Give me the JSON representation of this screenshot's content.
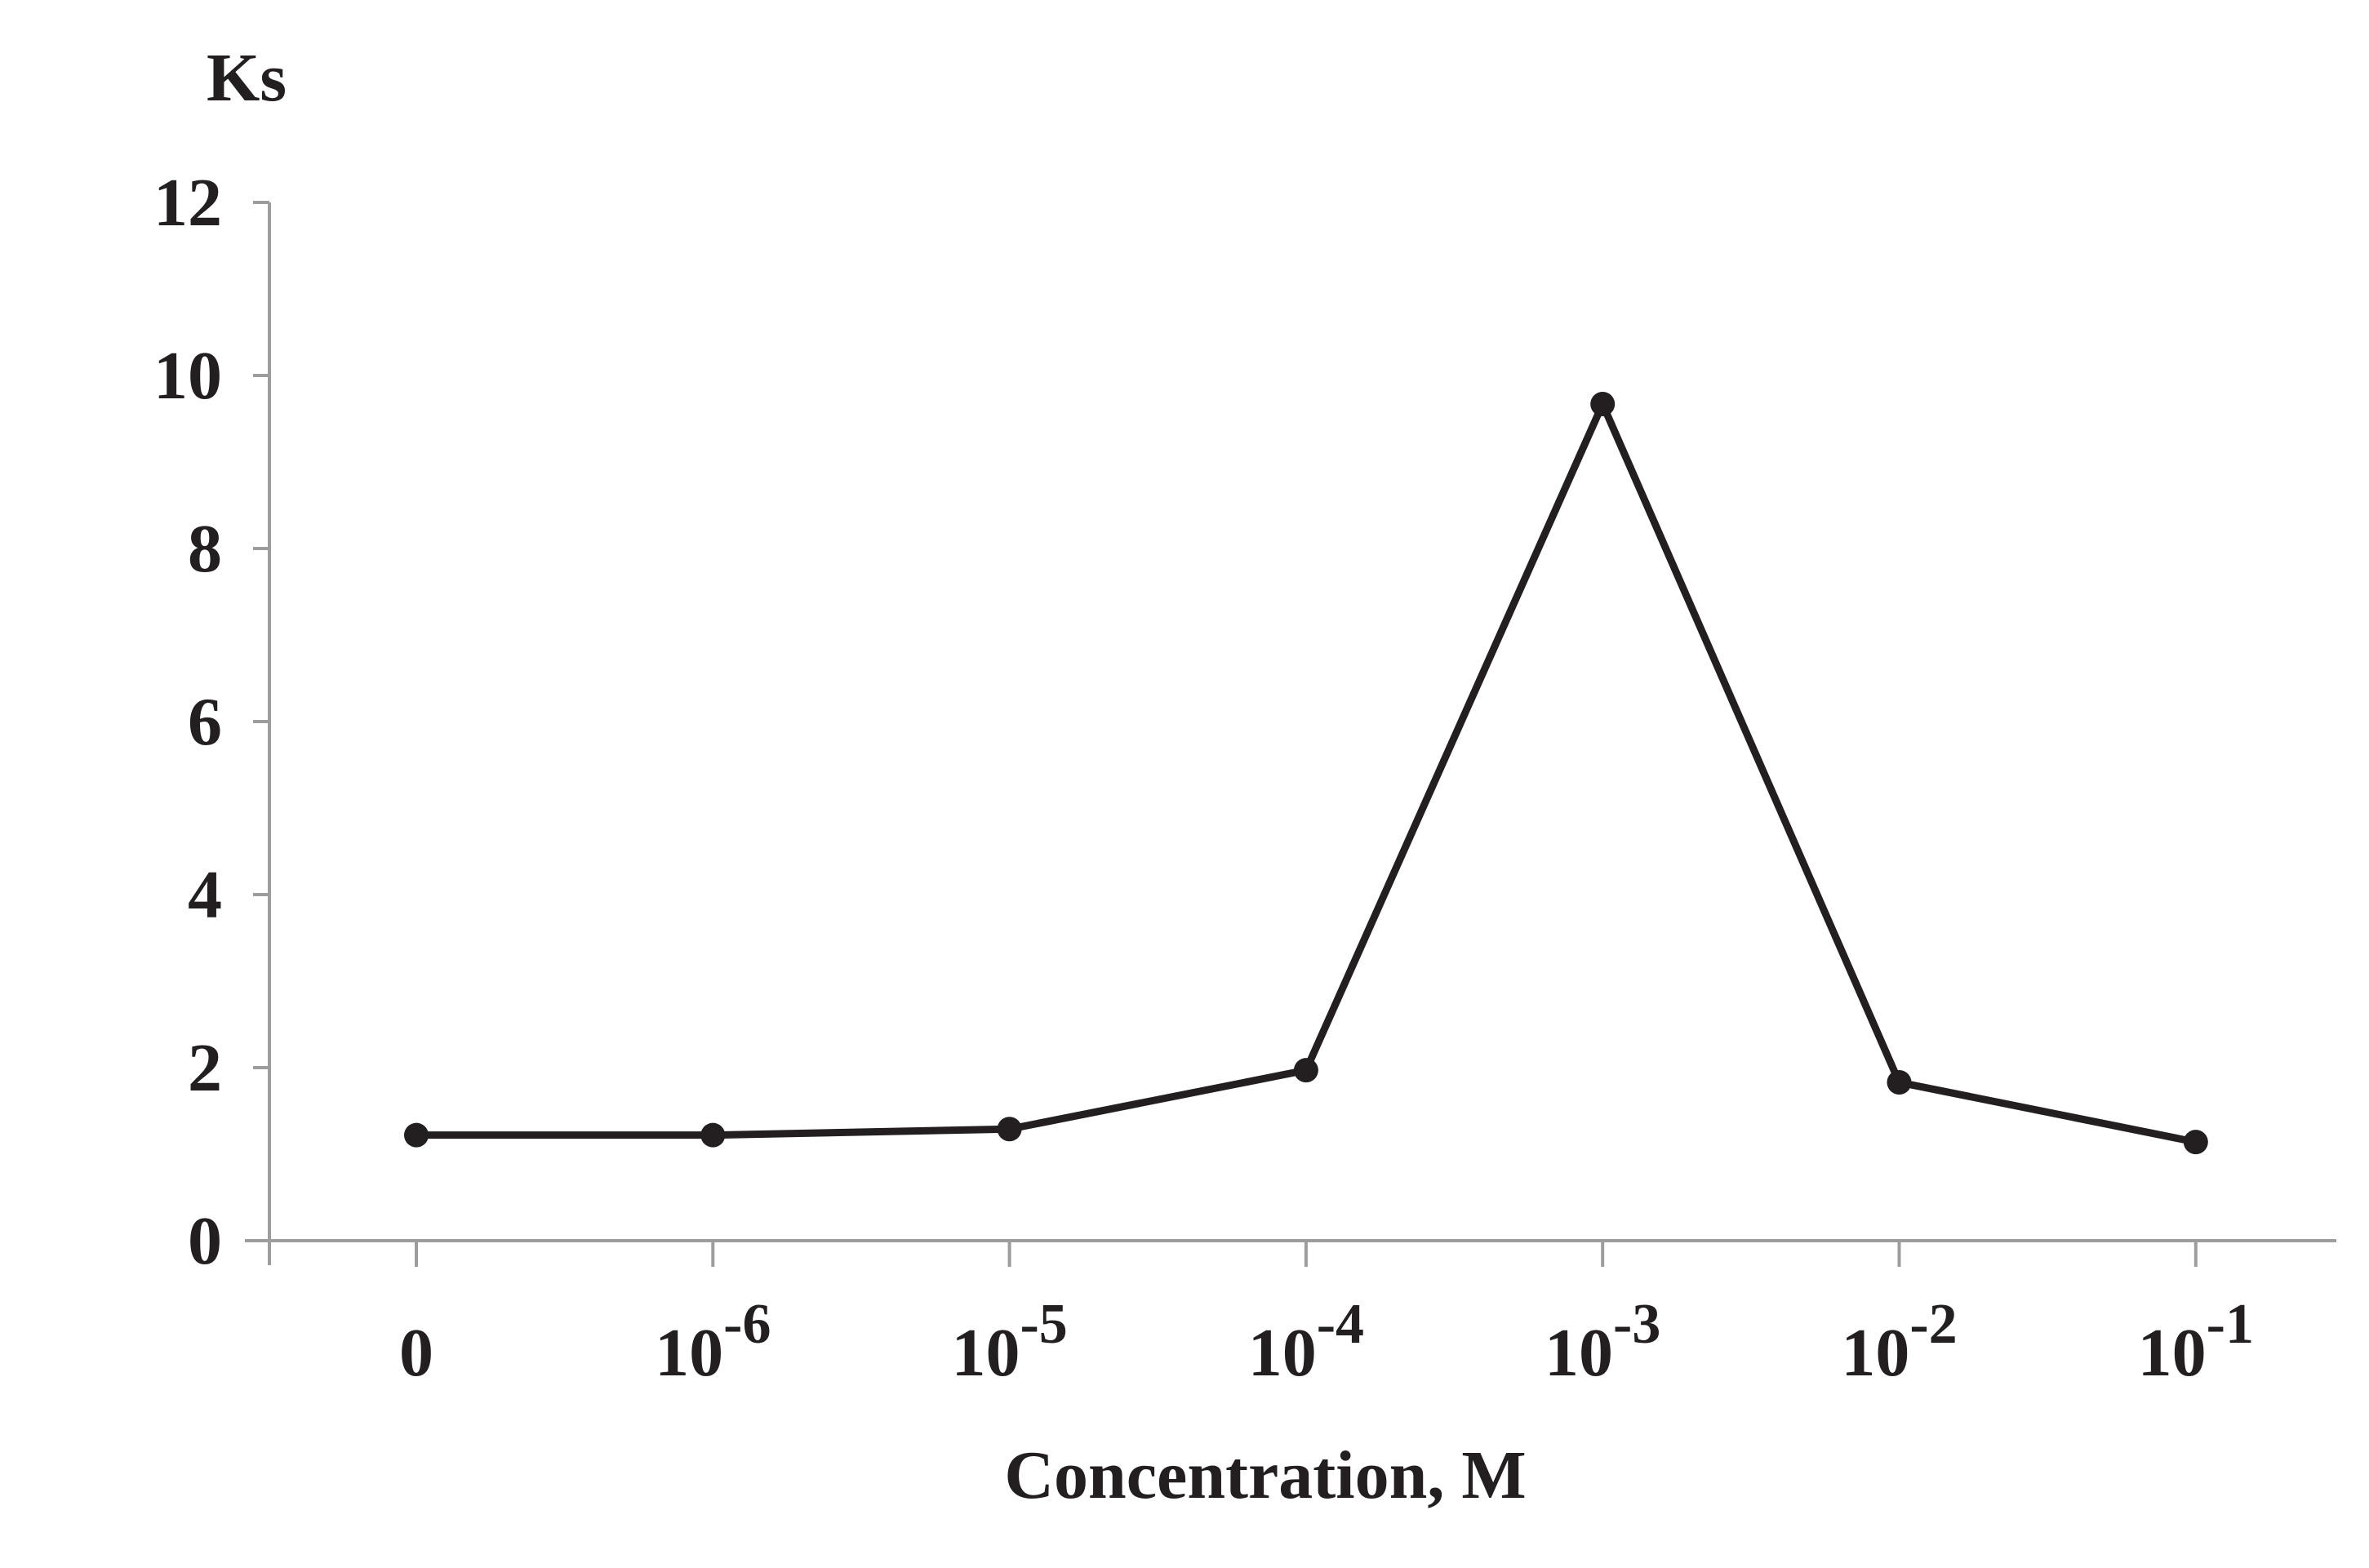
{
  "chart_data": {
    "type": "line",
    "ylabel": "Ks",
    "xlabel": "Concentration, M",
    "ylim": [
      0,
      12
    ],
    "yticks": [
      0,
      2,
      4,
      6,
      8,
      10,
      12
    ],
    "grid": false,
    "categories": [
      {
        "base": "0",
        "exp": ""
      },
      {
        "base": "10",
        "exp": "-6"
      },
      {
        "base": "10",
        "exp": "-5"
      },
      {
        "base": "10",
        "exp": "-4"
      },
      {
        "base": "10",
        "exp": "-3"
      },
      {
        "base": "10",
        "exp": "-2"
      },
      {
        "base": "10",
        "exp": "-1"
      }
    ],
    "series": [
      {
        "values": [
          1.22,
          1.22,
          1.29,
          1.97,
          9.67,
          1.83,
          1.14
        ],
        "color": "#231f20"
      }
    ],
    "axis_color": "#9d9d9d"
  }
}
